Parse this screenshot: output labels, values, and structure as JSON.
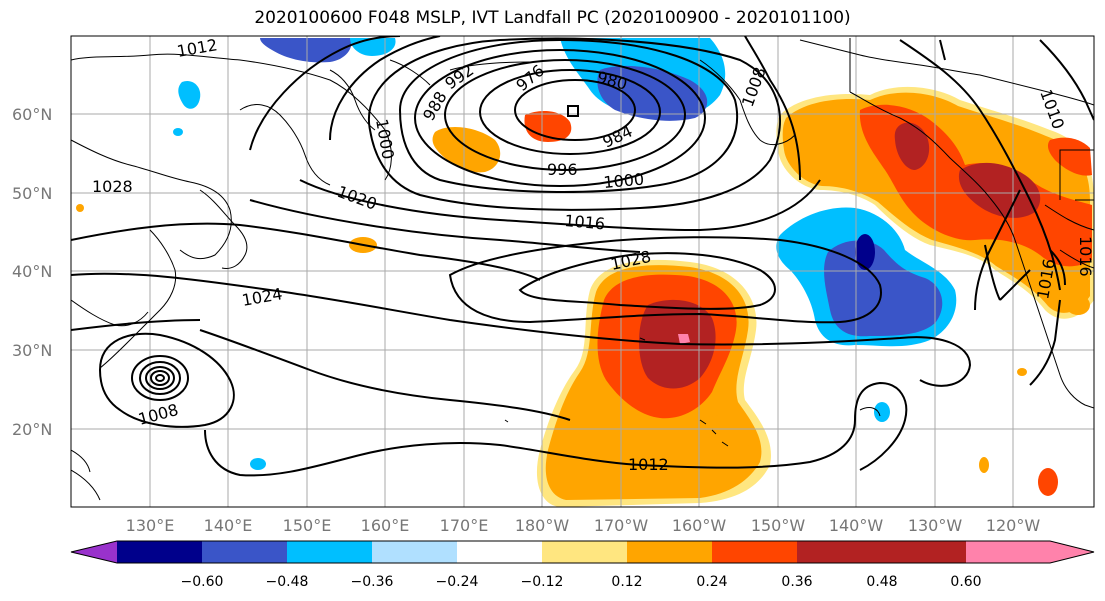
{
  "title": "2020100600 F048 MSLP, IVT Landfall PC (2020100900 - 2020101100)",
  "lon_ticks": [
    "130°E",
    "140°E",
    "150°E",
    "160°E",
    "170°E",
    "180°W",
    "170°W",
    "160°W",
    "150°W",
    "140°W",
    "130°W",
    "120°W"
  ],
  "lat_ticks": [
    "60°N",
    "50°N",
    "40°N",
    "30°N",
    "20°N"
  ],
  "contour_labels": [
    "1012",
    "992",
    "976",
    "980",
    "988",
    "1000",
    "984",
    "996",
    "1000",
    "1008",
    "1010",
    "1028",
    "1020",
    "1016",
    "1028",
    "1024",
    "1008",
    "1012",
    "1016",
    "1016"
  ],
  "colorbar": {
    "ticks": [
      "−0.60",
      "−0.48",
      "−0.36",
      "−0.24",
      "−0.12",
      "0.12",
      "0.24",
      "0.36",
      "0.48",
      "0.60"
    ],
    "colors": [
      "#9932cc",
      "#00008b",
      "#3a55c8",
      "#00bfff",
      "#b0e0ff",
      "#ffffff",
      "#ffe680",
      "#ffa500",
      "#ff4500",
      "#b22222",
      "#ff82ab"
    ]
  }
}
